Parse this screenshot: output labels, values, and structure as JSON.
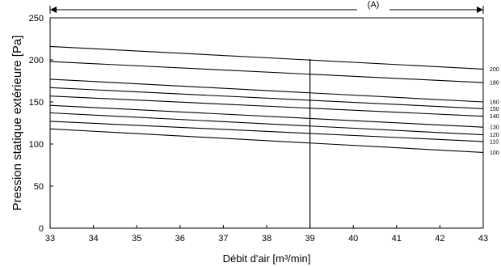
{
  "chart_data": {
    "type": "line",
    "title": "",
    "xlabel": "Débit d'air [m³/min]",
    "ylabel": "Pression statique extérieure [Pa]",
    "top_label": "(A)",
    "xlim": [
      33,
      43
    ],
    "ylim": [
      0,
      250
    ],
    "xticks": [
      "33",
      "34",
      "35",
      "36",
      "37",
      "38",
      "39",
      "40",
      "41",
      "42",
      "43"
    ],
    "yticks": [
      "0",
      "50",
      "100",
      "150",
      "200",
      "250"
    ],
    "grid": false,
    "series": [
      {
        "name": "200",
        "x": [
          33,
          43
        ],
        "y": [
          216,
          189
        ]
      },
      {
        "name": "180",
        "x": [
          33,
          43
        ],
        "y": [
          198,
          173
        ]
      },
      {
        "name": "160",
        "x": [
          33,
          43
        ],
        "y": [
          177,
          150
        ]
      },
      {
        "name": "150",
        "x": [
          33,
          43
        ],
        "y": [
          167,
          142
        ]
      },
      {
        "name": "140",
        "x": [
          33,
          43
        ],
        "y": [
          157,
          133
        ]
      },
      {
        "name": "130",
        "x": [
          33,
          43
        ],
        "y": [
          146,
          120
        ]
      },
      {
        "name": "120",
        "x": [
          33,
          43
        ],
        "y": [
          137,
          111
        ]
      },
      {
        "name": "110",
        "x": [
          33,
          43
        ],
        "y": [
          127,
          103
        ]
      },
      {
        "name": "100",
        "x": [
          33,
          43
        ],
        "y": [
          118,
          90
        ]
      }
    ],
    "vline": {
      "x": 39,
      "y": [
        0,
        201
      ]
    },
    "range_arrow": {
      "x": [
        33,
        43
      ]
    }
  }
}
